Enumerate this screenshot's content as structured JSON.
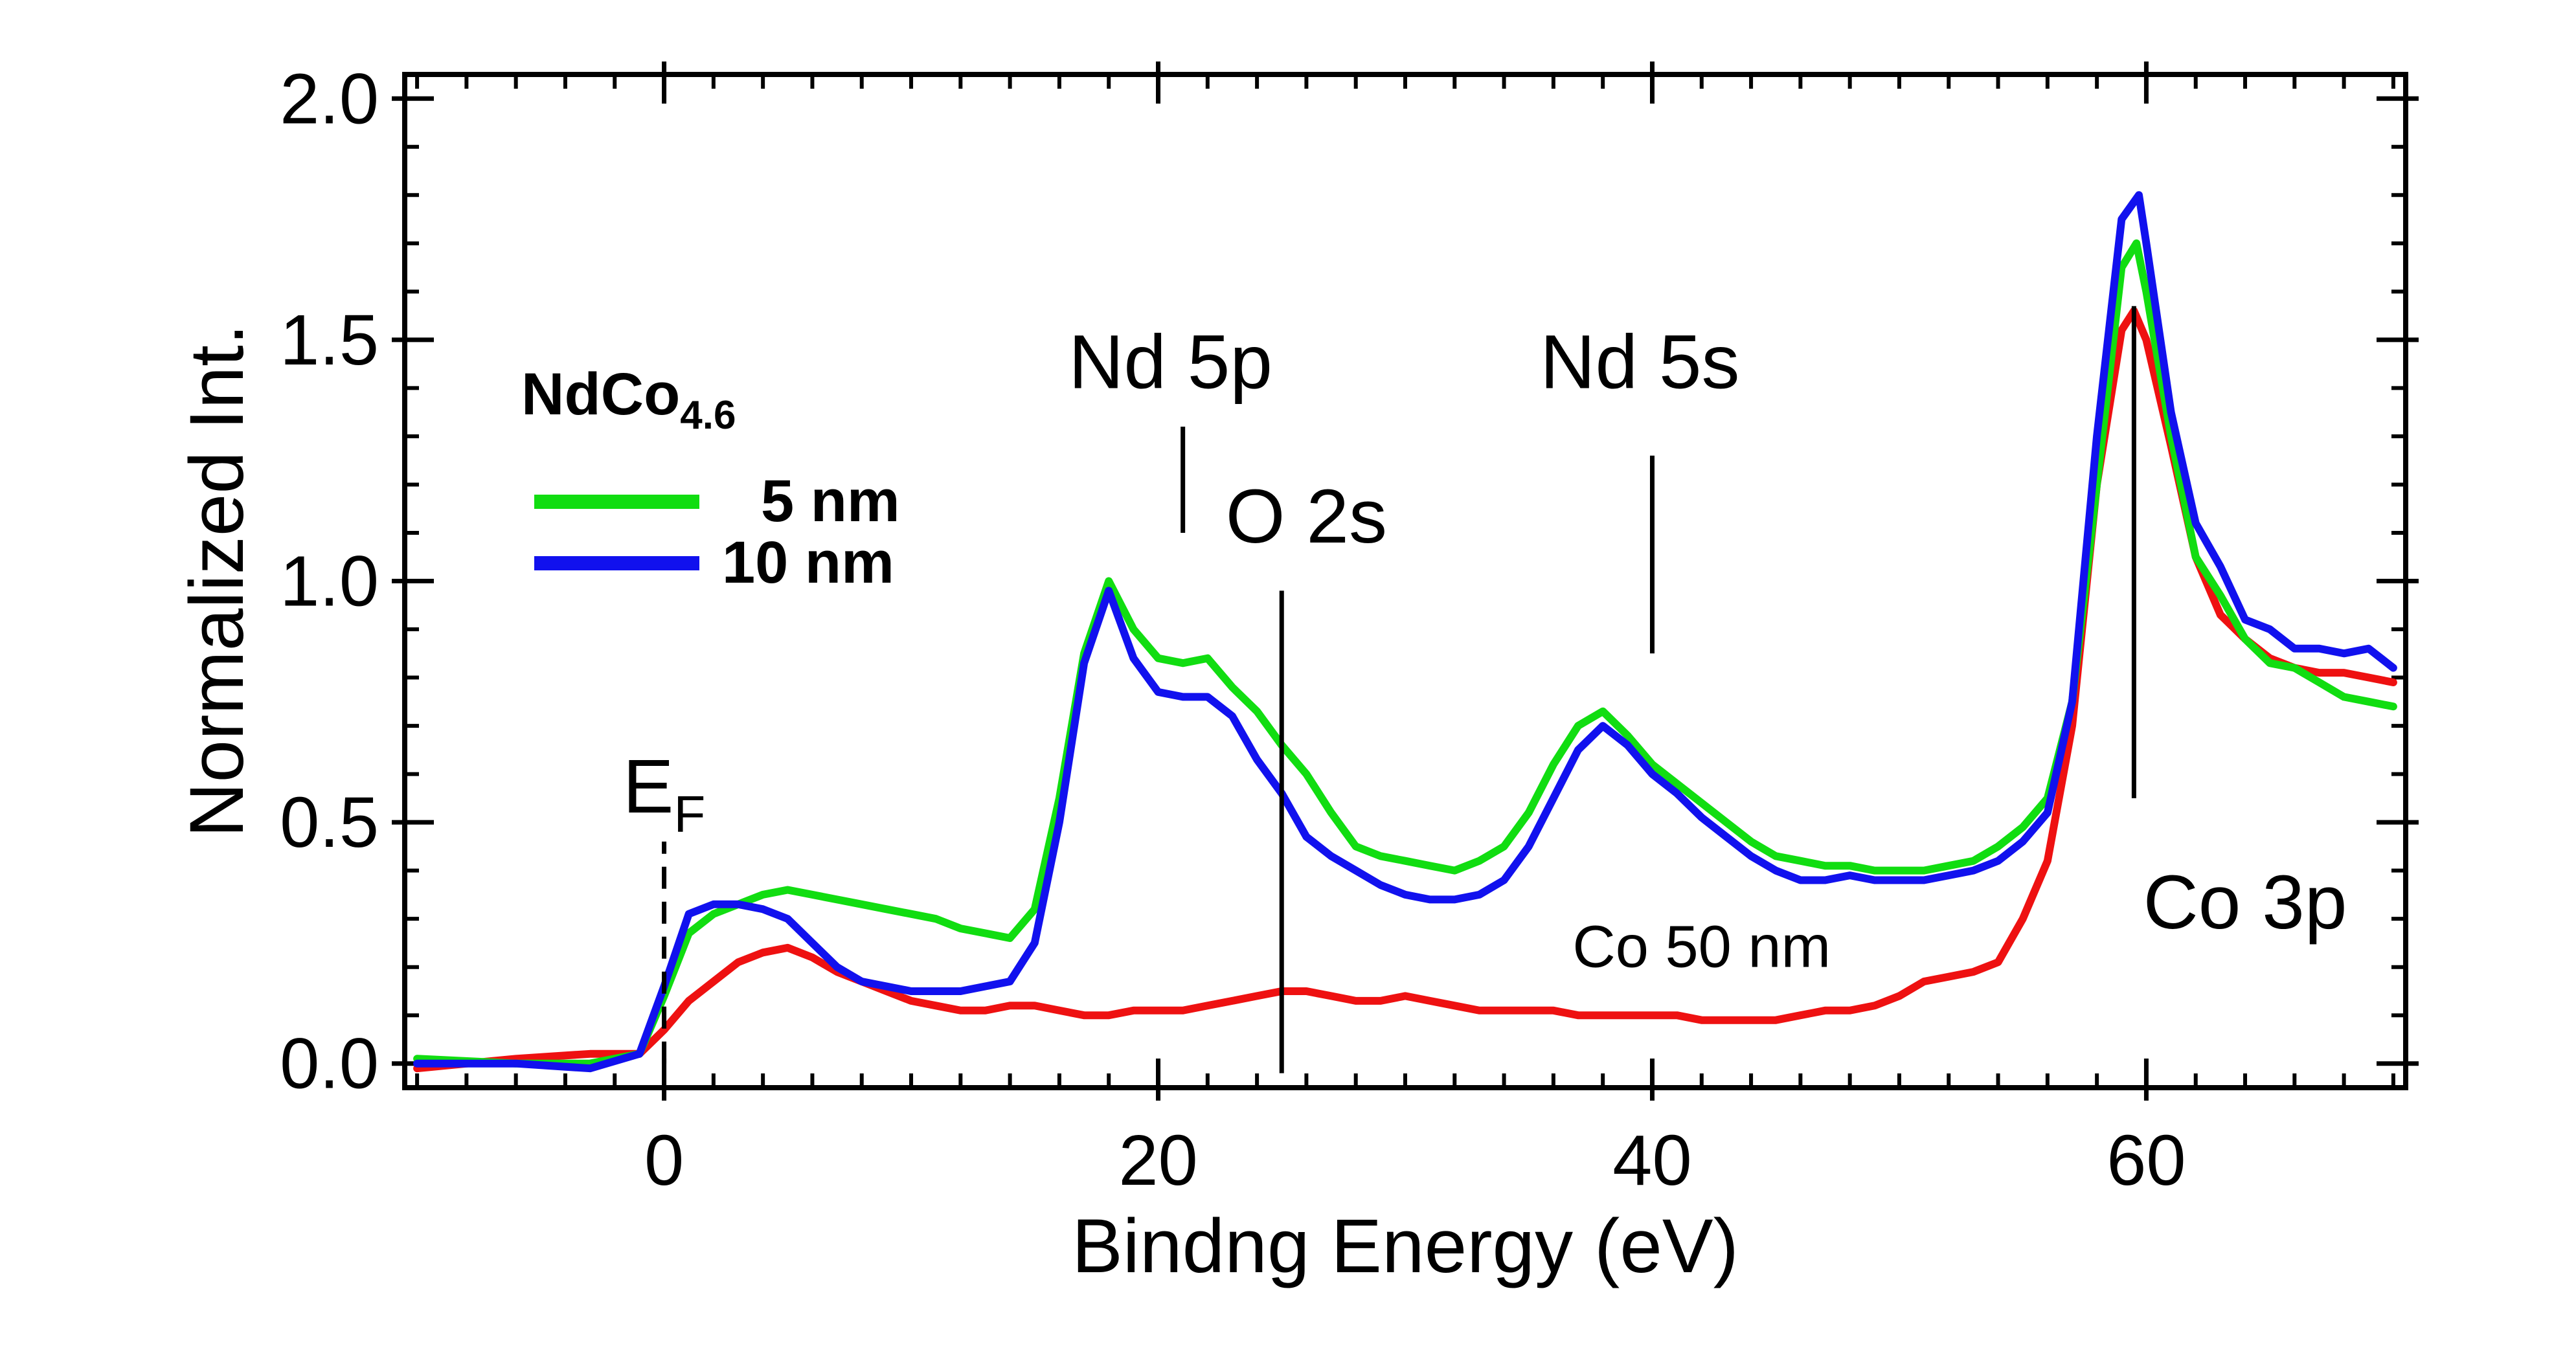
{
  "chart_data": {
    "type": "line",
    "title": "",
    "xlabel": "Bindng Energy (eV)",
    "ylabel": "Normalized Int.",
    "xlim": [
      -10.5,
      70.5
    ],
    "ylim": [
      -0.05,
      2.05
    ],
    "xticks": [
      0,
      20,
      40,
      60
    ],
    "xtick_labels": [
      "0",
      "20",
      "40",
      "60"
    ],
    "yticks": [
      0.0,
      0.5,
      1.0,
      1.5,
      2.0
    ],
    "ytick_labels": [
      "0.0",
      "0.5",
      "1.0",
      "1.5",
      "2.0"
    ],
    "x_minor_step": 2,
    "y_minor_step": 0.1,
    "grid": false,
    "legend": {
      "title_main": "NdCo",
      "title_sub": "4.6",
      "position": "top-left",
      "entries": [
        {
          "label": "5 nm",
          "series": 0
        },
        {
          "label": "10 nm",
          "series": 1
        }
      ]
    },
    "series": [
      {
        "name": "5 nm",
        "color": "#11dd11",
        "points": [
          [
            -10,
            0.01
          ],
          [
            -6,
            0.0
          ],
          [
            -3,
            0.0
          ],
          [
            -1,
            0.02
          ],
          [
            0,
            0.14
          ],
          [
            1,
            0.27
          ],
          [
            2,
            0.31
          ],
          [
            3,
            0.33
          ],
          [
            4,
            0.35
          ],
          [
            5,
            0.36
          ],
          [
            6,
            0.35
          ],
          [
            7,
            0.34
          ],
          [
            8,
            0.33
          ],
          [
            9,
            0.32
          ],
          [
            10,
            0.31
          ],
          [
            11,
            0.3
          ],
          [
            12,
            0.28
          ],
          [
            13,
            0.27
          ],
          [
            14,
            0.26
          ],
          [
            15,
            0.32
          ],
          [
            16,
            0.55
          ],
          [
            17,
            0.85
          ],
          [
            18,
            1.0
          ],
          [
            19,
            0.9
          ],
          [
            20,
            0.84
          ],
          [
            21,
            0.83
          ],
          [
            22,
            0.84
          ],
          [
            23,
            0.78
          ],
          [
            24,
            0.73
          ],
          [
            25,
            0.66
          ],
          [
            26,
            0.6
          ],
          [
            27,
            0.52
          ],
          [
            28,
            0.45
          ],
          [
            29,
            0.43
          ],
          [
            30,
            0.42
          ],
          [
            31,
            0.41
          ],
          [
            32,
            0.4
          ],
          [
            33,
            0.42
          ],
          [
            34,
            0.45
          ],
          [
            35,
            0.52
          ],
          [
            36,
            0.62
          ],
          [
            37,
            0.7
          ],
          [
            38,
            0.73
          ],
          [
            39,
            0.68
          ],
          [
            40,
            0.62
          ],
          [
            41,
            0.58
          ],
          [
            42,
            0.54
          ],
          [
            43,
            0.5
          ],
          [
            44,
            0.46
          ],
          [
            45,
            0.43
          ],
          [
            46,
            0.42
          ],
          [
            47,
            0.41
          ],
          [
            48,
            0.41
          ],
          [
            49,
            0.4
          ],
          [
            50,
            0.4
          ],
          [
            51,
            0.4
          ],
          [
            52,
            0.41
          ],
          [
            53,
            0.42
          ],
          [
            54,
            0.45
          ],
          [
            55,
            0.49
          ],
          [
            56,
            0.55
          ],
          [
            57,
            0.75
          ],
          [
            58,
            1.2
          ],
          [
            59,
            1.65
          ],
          [
            59.6,
            1.7
          ],
          [
            60,
            1.6
          ],
          [
            61,
            1.3
          ],
          [
            62,
            1.05
          ],
          [
            63,
            0.97
          ],
          [
            64,
            0.88
          ],
          [
            65,
            0.83
          ],
          [
            66,
            0.82
          ],
          [
            67,
            0.79
          ],
          [
            68,
            0.76
          ],
          [
            69,
            0.75
          ],
          [
            70,
            0.74
          ]
        ]
      },
      {
        "name": "10 nm",
        "color": "#1111ee",
        "points": [
          [
            -10,
            0.0
          ],
          [
            -6,
            0.0
          ],
          [
            -3,
            -0.01
          ],
          [
            -1,
            0.02
          ],
          [
            0,
            0.16
          ],
          [
            1,
            0.31
          ],
          [
            2,
            0.33
          ],
          [
            3,
            0.33
          ],
          [
            4,
            0.32
          ],
          [
            5,
            0.3
          ],
          [
            6,
            0.25
          ],
          [
            7,
            0.2
          ],
          [
            8,
            0.17
          ],
          [
            9,
            0.16
          ],
          [
            10,
            0.15
          ],
          [
            11,
            0.15
          ],
          [
            12,
            0.15
          ],
          [
            13,
            0.16
          ],
          [
            14,
            0.17
          ],
          [
            15,
            0.25
          ],
          [
            16,
            0.5
          ],
          [
            17,
            0.83
          ],
          [
            18,
            0.98
          ],
          [
            19,
            0.84
          ],
          [
            20,
            0.77
          ],
          [
            21,
            0.76
          ],
          [
            22,
            0.76
          ],
          [
            23,
            0.72
          ],
          [
            24,
            0.63
          ],
          [
            25,
            0.56
          ],
          [
            26,
            0.47
          ],
          [
            27,
            0.43
          ],
          [
            28,
            0.4
          ],
          [
            29,
            0.37
          ],
          [
            30,
            0.35
          ],
          [
            31,
            0.34
          ],
          [
            32,
            0.34
          ],
          [
            33,
            0.35
          ],
          [
            34,
            0.38
          ],
          [
            35,
            0.45
          ],
          [
            36,
            0.55
          ],
          [
            37,
            0.65
          ],
          [
            38,
            0.7
          ],
          [
            39,
            0.66
          ],
          [
            40,
            0.6
          ],
          [
            41,
            0.56
          ],
          [
            42,
            0.51
          ],
          [
            43,
            0.47
          ],
          [
            44,
            0.43
          ],
          [
            45,
            0.4
          ],
          [
            46,
            0.38
          ],
          [
            47,
            0.38
          ],
          [
            48,
            0.39
          ],
          [
            49,
            0.38
          ],
          [
            50,
            0.38
          ],
          [
            51,
            0.38
          ],
          [
            52,
            0.39
          ],
          [
            53,
            0.4
          ],
          [
            54,
            0.42
          ],
          [
            55,
            0.46
          ],
          [
            56,
            0.52
          ],
          [
            57,
            0.75
          ],
          [
            58,
            1.3
          ],
          [
            59,
            1.75
          ],
          [
            59.7,
            1.8
          ],
          [
            60,
            1.7
          ],
          [
            61,
            1.35
          ],
          [
            62,
            1.12
          ],
          [
            63,
            1.03
          ],
          [
            64,
            0.92
          ],
          [
            65,
            0.9
          ],
          [
            66,
            0.86
          ],
          [
            67,
            0.86
          ],
          [
            68,
            0.85
          ],
          [
            69,
            0.86
          ],
          [
            70,
            0.82
          ]
        ]
      },
      {
        "name": "Co 50 nm",
        "color": "#ee1111",
        "points": [
          [
            -10,
            -0.01
          ],
          [
            -6,
            0.01
          ],
          [
            -3,
            0.02
          ],
          [
            -1,
            0.02
          ],
          [
            0,
            0.07
          ],
          [
            1,
            0.13
          ],
          [
            2,
            0.17
          ],
          [
            3,
            0.21
          ],
          [
            4,
            0.23
          ],
          [
            5,
            0.24
          ],
          [
            6,
            0.22
          ],
          [
            7,
            0.19
          ],
          [
            8,
            0.17
          ],
          [
            9,
            0.15
          ],
          [
            10,
            0.13
          ],
          [
            11,
            0.12
          ],
          [
            12,
            0.11
          ],
          [
            13,
            0.11
          ],
          [
            14,
            0.12
          ],
          [
            15,
            0.12
          ],
          [
            16,
            0.11
          ],
          [
            17,
            0.1
          ],
          [
            18,
            0.1
          ],
          [
            19,
            0.11
          ],
          [
            20,
            0.11
          ],
          [
            21,
            0.11
          ],
          [
            22,
            0.12
          ],
          [
            23,
            0.13
          ],
          [
            24,
            0.14
          ],
          [
            25,
            0.15
          ],
          [
            26,
            0.15
          ],
          [
            27,
            0.14
          ],
          [
            28,
            0.13
          ],
          [
            29,
            0.13
          ],
          [
            30,
            0.14
          ],
          [
            31,
            0.13
          ],
          [
            32,
            0.12
          ],
          [
            33,
            0.11
          ],
          [
            34,
            0.11
          ],
          [
            35,
            0.11
          ],
          [
            36,
            0.11
          ],
          [
            37,
            0.1
          ],
          [
            38,
            0.1
          ],
          [
            39,
            0.1
          ],
          [
            40,
            0.1
          ],
          [
            41,
            0.1
          ],
          [
            42,
            0.09
          ],
          [
            43,
            0.09
          ],
          [
            44,
            0.09
          ],
          [
            45,
            0.09
          ],
          [
            46,
            0.1
          ],
          [
            47,
            0.11
          ],
          [
            48,
            0.11
          ],
          [
            49,
            0.12
          ],
          [
            50,
            0.14
          ],
          [
            51,
            0.17
          ],
          [
            52,
            0.18
          ],
          [
            53,
            0.19
          ],
          [
            54,
            0.21
          ],
          [
            55,
            0.3
          ],
          [
            56,
            0.42
          ],
          [
            57,
            0.7
          ],
          [
            58,
            1.2
          ],
          [
            59,
            1.52
          ],
          [
            59.5,
            1.56
          ],
          [
            60,
            1.5
          ],
          [
            61,
            1.28
          ],
          [
            62,
            1.05
          ],
          [
            63,
            0.93
          ],
          [
            64,
            0.88
          ],
          [
            65,
            0.84
          ],
          [
            66,
            0.82
          ],
          [
            67,
            0.81
          ],
          [
            68,
            0.81
          ],
          [
            69,
            0.8
          ],
          [
            70,
            0.79
          ]
        ]
      }
    ],
    "series_label": {
      "text": "Co 50 nm",
      "series": 2,
      "at": [
        42,
        0.2
      ]
    },
    "annotations": [
      {
        "text": "E",
        "sub": "F",
        "x": 0,
        "y_from": 0.0,
        "y_to": 0.46,
        "style": "dashed",
        "label_at": [
          0,
          0.52
        ]
      },
      {
        "text": "Nd 5p",
        "x": 21,
        "y_from": 1.1,
        "y_to": 1.32,
        "style": "solid",
        "label_at": [
          20.5,
          1.4
        ]
      },
      {
        "text": "O 2s",
        "x": 25,
        "y_from": -0.02,
        "y_to": 0.98,
        "style": "solid",
        "label_at": [
          26,
          1.08
        ]
      },
      {
        "text": "Nd 5s",
        "x": 40,
        "y_from": 0.85,
        "y_to": 1.26,
        "style": "solid",
        "label_at": [
          39.5,
          1.4
        ]
      },
      {
        "text": "Co 3p",
        "x": 59.5,
        "y_from": 0.55,
        "y_to": 1.57,
        "style": "solid",
        "label_at": [
          64,
          0.28
        ]
      }
    ]
  }
}
